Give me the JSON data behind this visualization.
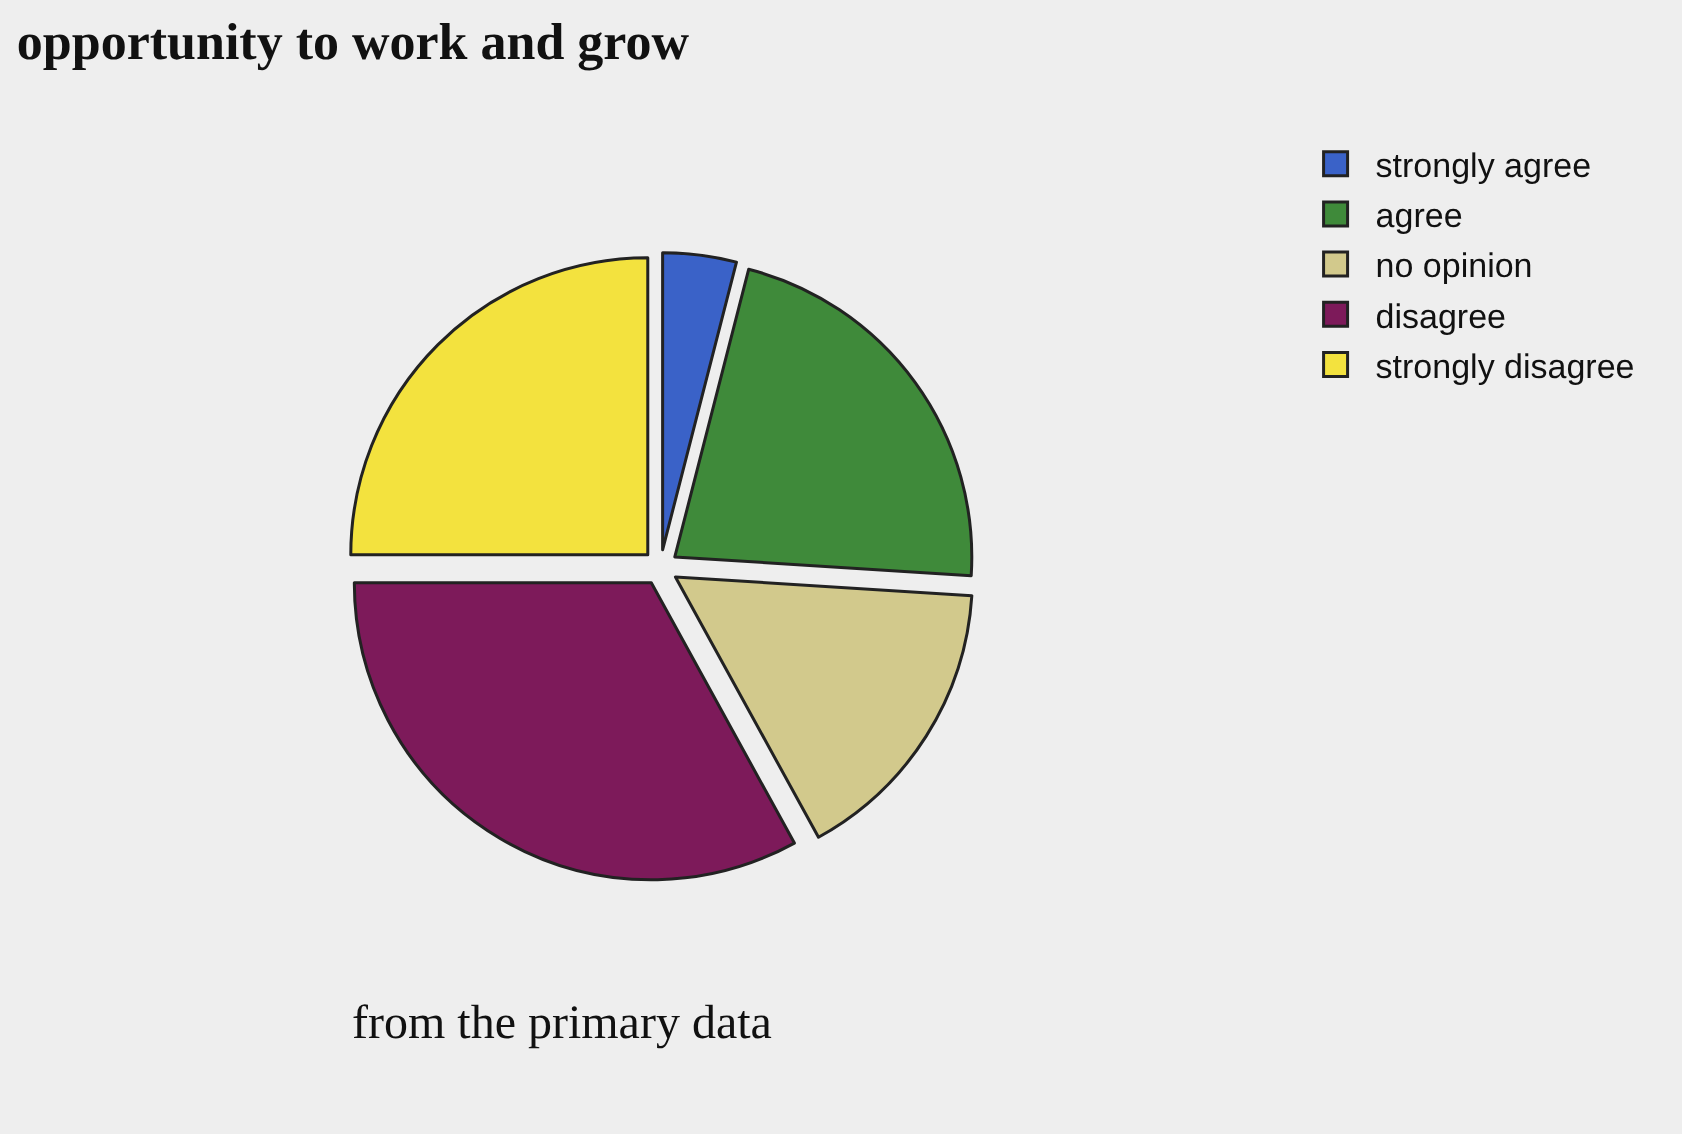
{
  "chart_data": {
    "type": "pie",
    "title": "opportunity to work and grow",
    "categories": [
      "strongly agree",
      "agree",
      "no opinion",
      "disagree",
      "strongly disagree"
    ],
    "values": [
      4,
      22,
      16,
      33,
      25
    ],
    "colors": [
      "#3a62c8",
      "#3f8a3a",
      "#d2c98c",
      "#7d1a5a",
      "#f3e23e"
    ],
    "legend": "top right",
    "annotations": [
      "from the primary data"
    ]
  }
}
